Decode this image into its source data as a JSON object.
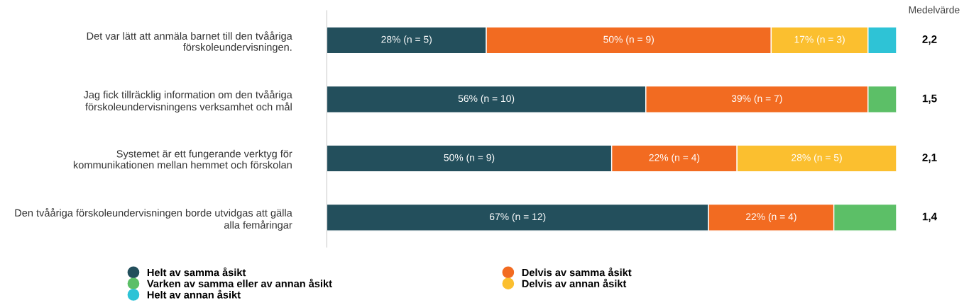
{
  "chart_data": {
    "type": "bar",
    "orientation": "horizontal",
    "stacked": true,
    "categories": [
      "Det var lätt att anmäla barnet till den tvååriga\nförskoleundervisningen.",
      "Jag fick tillräcklig information om den tvååriga\nförskoleundervisningens verksamhet och mål",
      "Systemet är ett fungerande verktyg för\nkommunikationen mellan hemmet och förskolan",
      "Den tvååriga förskoleundervisningen borde utvidgas att gälla\nalla femåringar"
    ],
    "series": [
      {
        "name": "Helt av samma åsikt",
        "color": "#234f5c",
        "values": [
          28,
          56,
          50,
          67
        ],
        "value_labels": [
          "28% (n = 5)",
          "56% (n = 10)",
          "50% (n = 9)",
          "67% (n = 12)"
        ]
      },
      {
        "name": "Delvis av samma åsikt",
        "color": "#f26b21",
        "values": [
          50,
          39,
          22,
          22
        ],
        "value_labels": [
          "50% (n = 9)",
          "39% (n = 7)",
          "22% (n = 4)",
          "22% (n = 4)"
        ]
      },
      {
        "name": "Varken av samma eller av annan åsikt",
        "color": "#5cbf67",
        "values": [
          null,
          5,
          null,
          11
        ],
        "value_labels": [
          null,
          null,
          null,
          null
        ]
      },
      {
        "name": "Delvis av annan åsikt",
        "color": "#fbbf2f",
        "values": [
          17,
          null,
          28,
          null
        ],
        "value_labels": [
          "17% (n = 3)",
          null,
          "28% (n = 5)",
          null
        ]
      },
      {
        "name": "Helt av annan åsikt",
        "color": "#2ec3d6",
        "values": [
          5,
          null,
          null,
          null
        ],
        "value_labels": [
          null,
          null,
          null,
          null
        ]
      }
    ],
    "xlim": [
      0,
      100
    ],
    "tick_labels": "y",
    "legend": "bottom",
    "grid": false,
    "annotations": [
      "Medelvärde",
      "2,2",
      "1,5",
      "2,1",
      "1,4"
    ]
  }
}
